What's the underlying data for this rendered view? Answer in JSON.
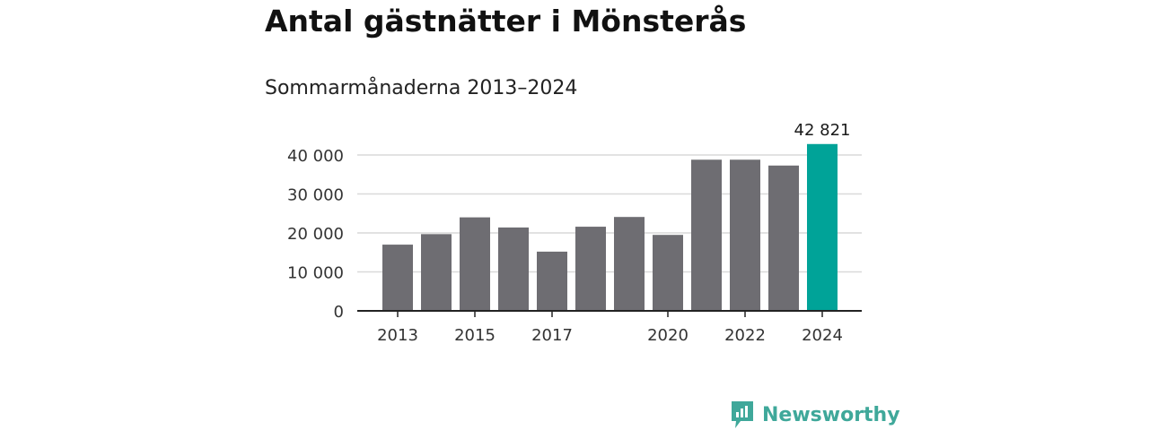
{
  "header": {
    "title": "Antal gästnätter i Mönsterås",
    "subtitle": "Sommarmånaderna 2013–2024"
  },
  "brand": {
    "name": "Newsworthy",
    "icon": "newsworthy-logo-icon",
    "color": "#3fa89a"
  },
  "colors": {
    "bar": "#6e6d72",
    "highlight": "#00a398",
    "grid": "#d9d9d9",
    "axis": "#222222"
  },
  "chart_data": {
    "type": "bar",
    "title": "Antal gästnätter i Mönsterås",
    "subtitle": "Sommarmånaderna 2013–2024",
    "xlabel": "",
    "ylabel": "",
    "categories": [
      "2013",
      "2014",
      "2015",
      "2016",
      "2017",
      "2018",
      "2019",
      "2020",
      "2021",
      "2022",
      "2023",
      "2024"
    ],
    "values": [
      17000,
      19700,
      24000,
      21400,
      15200,
      21600,
      24100,
      19500,
      38800,
      38800,
      37300,
      42821
    ],
    "highlight_index": 11,
    "data_labels": [
      {
        "index": 11,
        "text": "42 821"
      }
    ],
    "x_tick_labels": [
      "2013",
      "2015",
      "2017",
      "2020",
      "2022",
      "2024"
    ],
    "y_ticks": [
      {
        "value": 0,
        "label": "0"
      },
      {
        "value": 10000,
        "label": "10 000"
      },
      {
        "value": 20000,
        "label": "20 000"
      },
      {
        "value": 30000,
        "label": "30 000"
      },
      {
        "value": 40000,
        "label": "40 000"
      }
    ],
    "ylim": [
      0,
      43000
    ],
    "grid": true,
    "legend": "none"
  }
}
